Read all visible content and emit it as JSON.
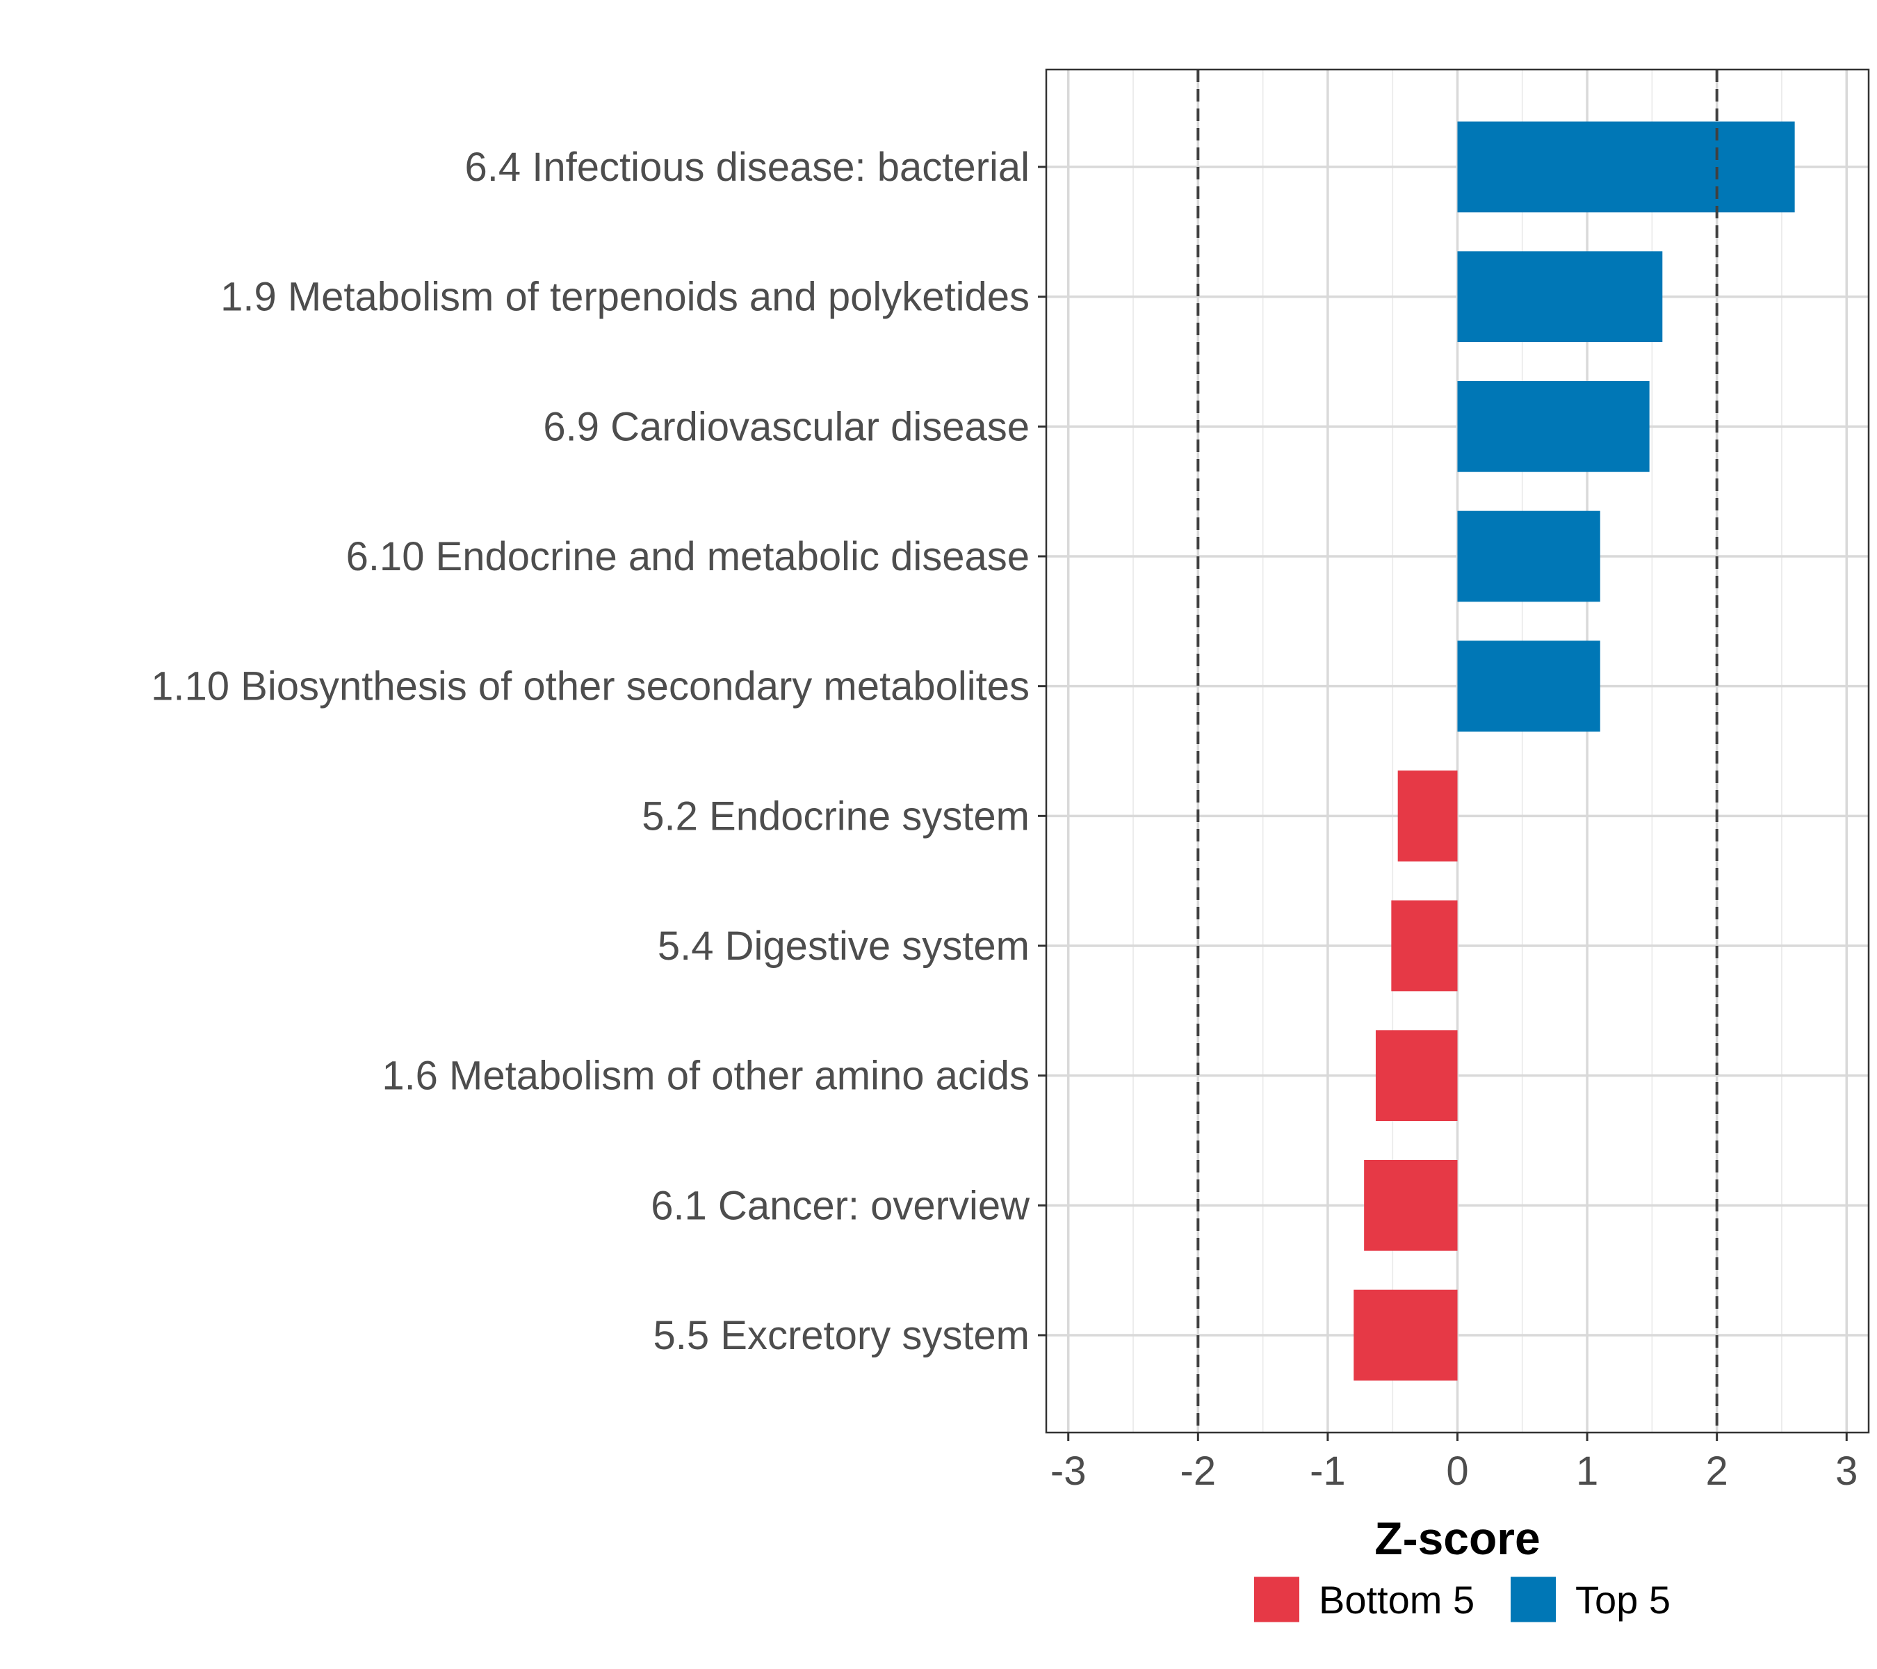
{
  "chart_data": {
    "type": "bar",
    "orientation": "horizontal",
    "categories": [
      "6.4 Infectious disease: bacterial",
      "1.9 Metabolism of terpenoids and polyketides",
      "6.9 Cardiovascular disease",
      "6.10 Endocrine and metabolic disease",
      "1.10 Biosynthesis of other secondary metabolites",
      "5.2 Endocrine system",
      "5.4 Digestive system",
      "1.6 Metabolism of other amino acids",
      "6.1 Cancer: overview",
      "5.5 Excretory system"
    ],
    "values": [
      2.6,
      1.58,
      1.48,
      1.1,
      1.1,
      -0.46,
      -0.51,
      -0.63,
      -0.72,
      -0.8
    ],
    "groups": [
      "Top 5",
      "Top 5",
      "Top 5",
      "Top 5",
      "Top 5",
      "Bottom 5",
      "Bottom 5",
      "Bottom 5",
      "Bottom 5",
      "Bottom 5"
    ],
    "xlabel": "Z-score",
    "ylabel": "",
    "xlim": [
      -3.17,
      3.17
    ],
    "xticks": [
      -3,
      -2,
      -1,
      0,
      1,
      2,
      3
    ],
    "xtick_labels": [
      "-3",
      "-2",
      "-1",
      "0",
      "1",
      "2",
      "3"
    ],
    "reference_lines": [
      -2,
      2
    ],
    "grid": true,
    "legend": {
      "position": "bottom",
      "entries": [
        {
          "label": "Bottom 5",
          "color": "#e63946"
        },
        {
          "label": "Top 5",
          "color": "#0077b6"
        }
      ]
    },
    "colors": {
      "Top 5": "#0077b6",
      "Bottom 5": "#e63946"
    }
  }
}
